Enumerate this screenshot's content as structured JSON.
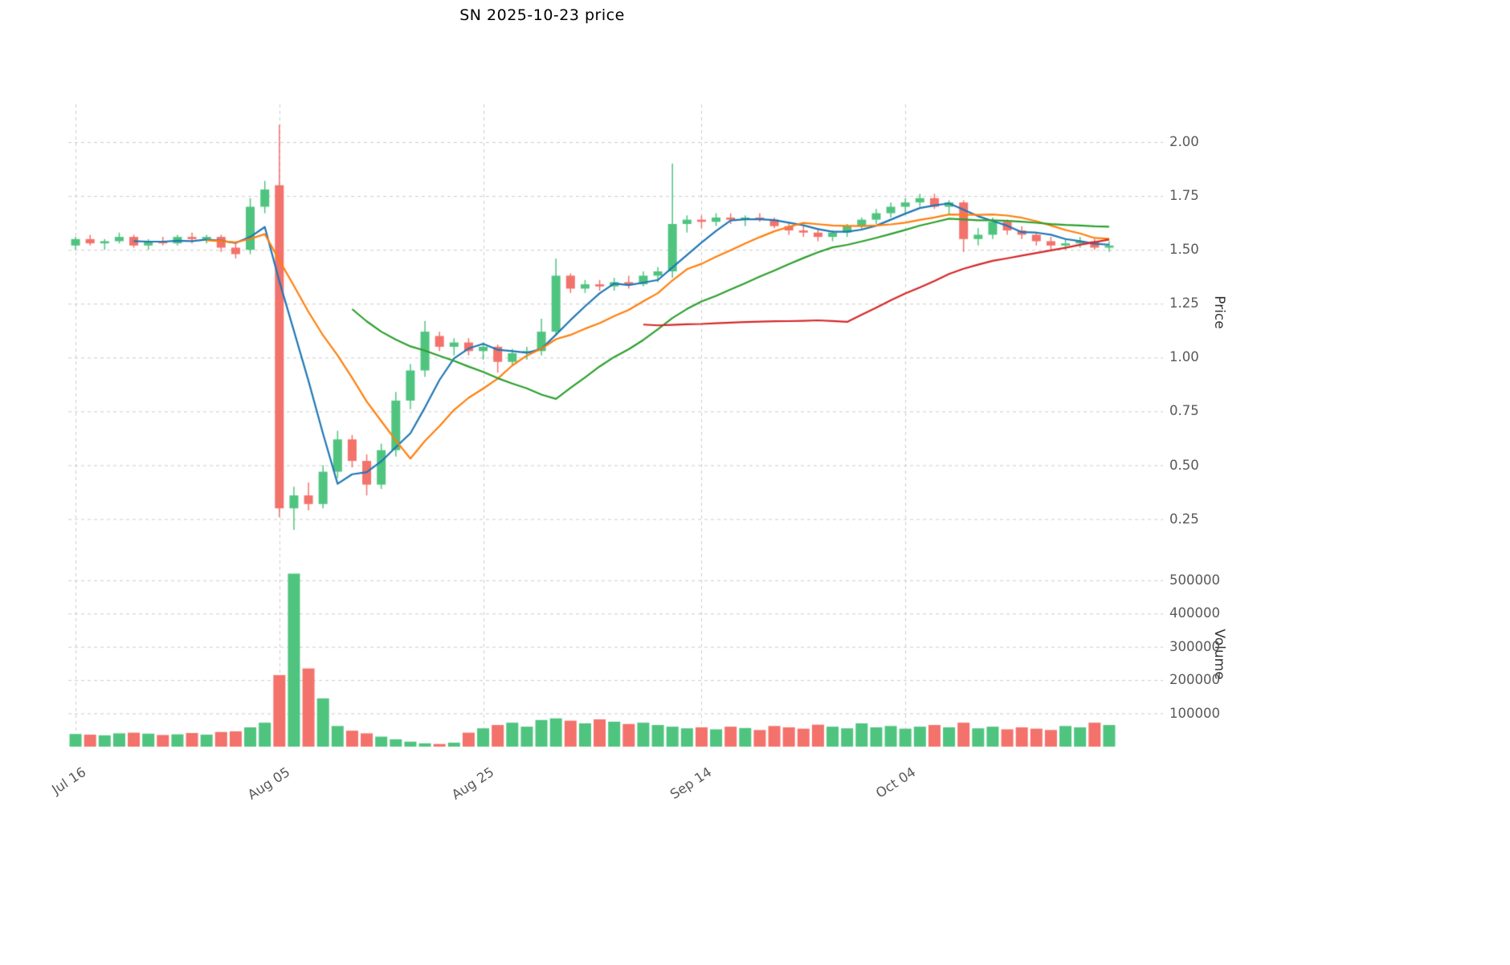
{
  "title": "SN  2025-10-23  price",
  "axes": {
    "price_axis_title": "Price",
    "volume_axis_title": "Volume",
    "price_ticks": [
      {
        "value": 2.0,
        "label": "2.00"
      },
      {
        "value": 1.75,
        "label": "1.75"
      },
      {
        "value": 1.5,
        "label": "1.50"
      },
      {
        "value": 1.25,
        "label": "1.25"
      },
      {
        "value": 1.0,
        "label": "1.00"
      },
      {
        "value": 0.75,
        "label": "0.75"
      },
      {
        "value": 0.5,
        "label": "0.50"
      },
      {
        "value": 0.25,
        "label": "0.25"
      }
    ],
    "volume_ticks": [
      {
        "value": 500000,
        "label": "500000"
      },
      {
        "value": 400000,
        "label": "400000"
      },
      {
        "value": 300000,
        "label": "300000"
      },
      {
        "value": 200000,
        "label": "200000"
      },
      {
        "value": 100000,
        "label": "100000"
      }
    ],
    "x_ticks": [
      {
        "index": 0,
        "label": "Jul 16"
      },
      {
        "index": 14,
        "label": "Aug 05"
      },
      {
        "index": 28,
        "label": "Aug 25"
      },
      {
        "index": 43,
        "label": "Sep 14"
      },
      {
        "index": 57,
        "label": "Oct 04"
      }
    ]
  },
  "style": {
    "up_color": "#4fc47f",
    "down_color": "#f3726b",
    "grid_color": "#cccccc",
    "tick_text_color": "#595959"
  },
  "chart_data": {
    "type": "candlestick",
    "title": "SN  2025-10-23  price",
    "ylabel_price": "Price",
    "ylabel_volume": "Volume",
    "price_ylim": [
      0.2,
      2.22
    ],
    "volume_ylim": [
      0,
      555000
    ],
    "grid": true,
    "columns": [
      "date",
      "open",
      "high",
      "low",
      "close",
      "volume"
    ],
    "candles": [
      [
        "2025-07-16",
        1.52,
        1.56,
        1.5,
        1.55,
        38000
      ],
      [
        "2025-07-17",
        1.55,
        1.57,
        1.52,
        1.53,
        36000
      ],
      [
        "2025-07-18",
        1.53,
        1.55,
        1.5,
        1.54,
        34000
      ],
      [
        "2025-07-21",
        1.54,
        1.58,
        1.53,
        1.56,
        40000
      ],
      [
        "2025-07-22",
        1.56,
        1.57,
        1.51,
        1.52,
        42000
      ],
      [
        "2025-07-23",
        1.52,
        1.55,
        1.5,
        1.54,
        39000
      ],
      [
        "2025-07-24",
        1.54,
        1.56,
        1.52,
        1.53,
        35000
      ],
      [
        "2025-07-25",
        1.53,
        1.57,
        1.52,
        1.56,
        37000
      ],
      [
        "2025-07-28",
        1.56,
        1.58,
        1.53,
        1.55,
        41000
      ],
      [
        "2025-07-29",
        1.55,
        1.57,
        1.53,
        1.56,
        36000
      ],
      [
        "2025-07-30",
        1.56,
        1.57,
        1.49,
        1.51,
        44000
      ],
      [
        "2025-07-31",
        1.51,
        1.53,
        1.46,
        1.48,
        46000
      ],
      [
        "2025-08-01",
        1.5,
        1.74,
        1.48,
        1.7,
        58000
      ],
      [
        "2025-08-04",
        1.7,
        1.82,
        1.67,
        1.78,
        72000
      ],
      [
        "2025-08-05",
        1.8,
        2.08,
        0.26,
        0.3,
        215000
      ],
      [
        "2025-08-06",
        0.3,
        0.4,
        0.2,
        0.36,
        520000
      ],
      [
        "2025-08-07",
        0.36,
        0.42,
        0.29,
        0.32,
        235000
      ],
      [
        "2025-08-08",
        0.32,
        0.5,
        0.3,
        0.47,
        145000
      ],
      [
        "2025-08-11",
        0.47,
        0.66,
        0.44,
        0.62,
        62000
      ],
      [
        "2025-08-12",
        0.62,
        0.64,
        0.49,
        0.52,
        48000
      ],
      [
        "2025-08-13",
        0.52,
        0.55,
        0.36,
        0.41,
        40000
      ],
      [
        "2025-08-14",
        0.41,
        0.6,
        0.39,
        0.57,
        30000
      ],
      [
        "2025-08-15",
        0.57,
        0.84,
        0.54,
        0.8,
        22000
      ],
      [
        "2025-08-18",
        0.8,
        0.97,
        0.76,
        0.94,
        15000
      ],
      [
        "2025-08-19",
        0.94,
        1.17,
        0.91,
        1.12,
        10000
      ],
      [
        "2025-08-20",
        1.1,
        1.12,
        1.03,
        1.05,
        8000
      ],
      [
        "2025-08-21",
        1.05,
        1.09,
        1.01,
        1.07,
        12000
      ],
      [
        "2025-08-22",
        1.07,
        1.09,
        1.01,
        1.03,
        42000
      ],
      [
        "2025-08-25",
        1.03,
        1.07,
        0.99,
        1.05,
        55000
      ],
      [
        "2025-08-26",
        1.05,
        1.06,
        0.93,
        0.98,
        65000
      ],
      [
        "2025-08-27",
        0.98,
        1.04,
        0.96,
        1.02,
        72000
      ],
      [
        "2025-08-28",
        1.02,
        1.05,
        0.99,
        1.03,
        60000
      ],
      [
        "2025-08-29",
        1.03,
        1.18,
        1.01,
        1.12,
        80000
      ],
      [
        "2025-09-01",
        1.12,
        1.46,
        1.1,
        1.38,
        85000
      ],
      [
        "2025-09-02",
        1.38,
        1.39,
        1.3,
        1.32,
        78000
      ],
      [
        "2025-09-03",
        1.32,
        1.36,
        1.3,
        1.34,
        70000
      ],
      [
        "2025-09-04",
        1.34,
        1.36,
        1.31,
        1.33,
        82000
      ],
      [
        "2025-09-05",
        1.33,
        1.37,
        1.31,
        1.35,
        75000
      ],
      [
        "2025-09-08",
        1.35,
        1.38,
        1.32,
        1.34,
        68000
      ],
      [
        "2025-09-09",
        1.34,
        1.4,
        1.33,
        1.38,
        72000
      ],
      [
        "2025-09-10",
        1.38,
        1.42,
        1.35,
        1.4,
        65000
      ],
      [
        "2025-09-11",
        1.4,
        1.9,
        1.37,
        1.62,
        60000
      ],
      [
        "2025-09-12",
        1.62,
        1.66,
        1.58,
        1.64,
        55000
      ],
      [
        "2025-09-15",
        1.64,
        1.66,
        1.6,
        1.63,
        58000
      ],
      [
        "2025-09-16",
        1.63,
        1.67,
        1.61,
        1.65,
        52000
      ],
      [
        "2025-09-17",
        1.65,
        1.67,
        1.62,
        1.64,
        60000
      ],
      [
        "2025-09-18",
        1.64,
        1.66,
        1.61,
        1.65,
        56000
      ],
      [
        "2025-09-19",
        1.65,
        1.67,
        1.63,
        1.64,
        50000
      ],
      [
        "2025-09-22",
        1.64,
        1.65,
        1.6,
        1.61,
        62000
      ],
      [
        "2025-09-23",
        1.61,
        1.63,
        1.57,
        1.59,
        58000
      ],
      [
        "2025-09-24",
        1.59,
        1.61,
        1.56,
        1.58,
        54000
      ],
      [
        "2025-09-25",
        1.58,
        1.6,
        1.54,
        1.56,
        66000
      ],
      [
        "2025-09-26",
        1.56,
        1.59,
        1.54,
        1.58,
        60000
      ],
      [
        "2025-09-29",
        1.58,
        1.62,
        1.56,
        1.61,
        55000
      ],
      [
        "2025-09-30",
        1.61,
        1.65,
        1.59,
        1.64,
        70000
      ],
      [
        "2025-10-01",
        1.64,
        1.69,
        1.62,
        1.67,
        58000
      ],
      [
        "2025-10-02",
        1.67,
        1.72,
        1.65,
        1.7,
        62000
      ],
      [
        "2025-10-03",
        1.7,
        1.74,
        1.67,
        1.72,
        54000
      ],
      [
        "2025-10-06",
        1.72,
        1.76,
        1.7,
        1.74,
        60000
      ],
      [
        "2025-10-07",
        1.74,
        1.76,
        1.69,
        1.7,
        65000
      ],
      [
        "2025-10-08",
        1.7,
        1.73,
        1.66,
        1.72,
        58000
      ],
      [
        "2025-10-09",
        1.72,
        1.73,
        1.49,
        1.55,
        72000
      ],
      [
        "2025-10-10",
        1.55,
        1.6,
        1.52,
        1.57,
        55000
      ],
      [
        "2025-10-13",
        1.57,
        1.65,
        1.55,
        1.63,
        60000
      ],
      [
        "2025-10-14",
        1.63,
        1.64,
        1.57,
        1.59,
        52000
      ],
      [
        "2025-10-15",
        1.59,
        1.61,
        1.55,
        1.57,
        58000
      ],
      [
        "2025-10-16",
        1.57,
        1.58,
        1.52,
        1.54,
        54000
      ],
      [
        "2025-10-17",
        1.54,
        1.56,
        1.5,
        1.52,
        50000
      ],
      [
        "2025-10-20",
        1.52,
        1.55,
        1.5,
        1.53,
        62000
      ],
      [
        "2025-10-21",
        1.53,
        1.56,
        1.51,
        1.54,
        58000
      ],
      [
        "2025-10-22",
        1.54,
        1.55,
        1.5,
        1.51,
        72000
      ],
      [
        "2025-10-23",
        1.51,
        1.54,
        1.49,
        1.52,
        65000
      ]
    ],
    "moving_averages": [
      {
        "name": "ma-fast",
        "period": 5,
        "color": "#1f77b4"
      },
      {
        "name": "ma-medium",
        "period": 10,
        "color": "#ff7f0e"
      },
      {
        "name": "ma-slow",
        "period": 20,
        "color": "#2ca02c"
      },
      {
        "name": "ma-long",
        "period": 40,
        "color": "#d62728"
      }
    ]
  }
}
